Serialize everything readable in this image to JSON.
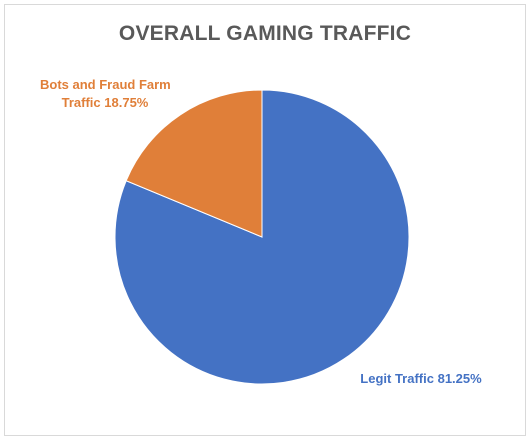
{
  "chart_data": {
    "type": "pie",
    "title": "OVERALL GAMING TRAFFIC",
    "slices": [
      {
        "label": "Legit Traffic",
        "value": 81.25,
        "value_label": "81.25%",
        "color": "#4472C4"
      },
      {
        "label": "Bots and Fraud Farm Traffic",
        "value": 18.75,
        "value_label": "18.75%",
        "color": "#E07F39"
      }
    ],
    "data_labels": {
      "legit": "Legit Traffic 81.25%",
      "bots_line1": "Bots and Fraud Farm",
      "bots_line2": "Traffic 18.75%"
    },
    "legend": "none"
  }
}
